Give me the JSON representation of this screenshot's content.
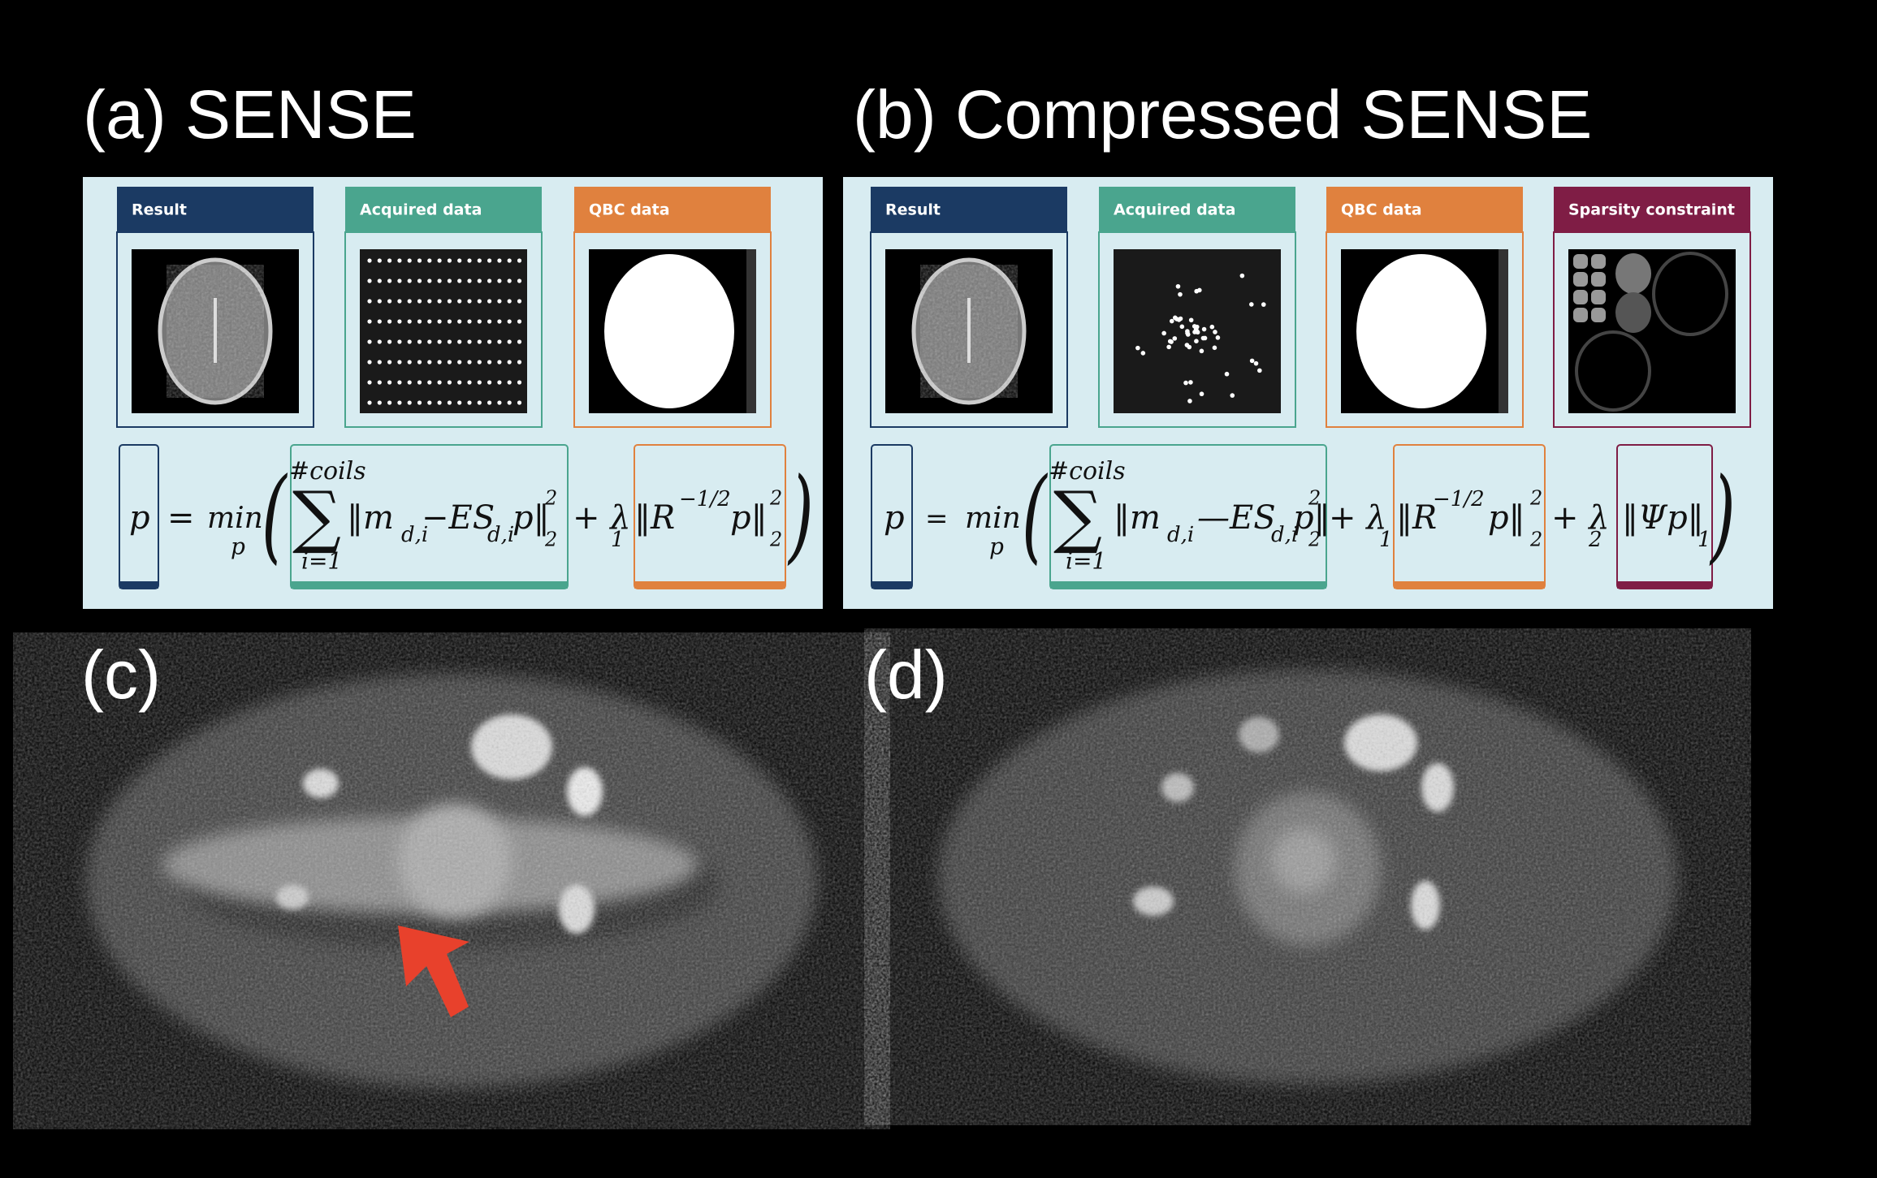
{
  "panel_a": {
    "label": "(a) SENSE",
    "headers": [
      "Result",
      "Acquired data",
      "QBC data"
    ],
    "formula": [
      "p",
      "=",
      "min",
      "p",
      "(",
      "#coils",
      "∑",
      "i=1",
      "‖m",
      "d,i",
      "−ES",
      "d,i",
      "p‖",
      "2",
      "2",
      "+ λ",
      "1",
      "‖R",
      "−1/2",
      "p‖",
      "2",
      "2",
      ")"
    ]
  },
  "panel_b": {
    "label": "(b) Compressed SENSE",
    "headers": [
      "Result",
      "Acquired data",
      "QBC data",
      "Sparsity constraint"
    ],
    "formula": [
      "p",
      "=",
      "min",
      "p",
      "(",
      "#coils",
      "∑",
      "i=1",
      "‖m",
      "d,i",
      "—ES",
      "d,i",
      "p‖",
      "2",
      "2",
      "+ λ",
      "1",
      "‖R",
      "−1/2",
      "p‖",
      "2",
      "2",
      "+ λ",
      "2",
      "‖Ψp‖",
      "1",
      ")"
    ]
  },
  "panel_c": {
    "label": "(c)"
  },
  "panel_d": {
    "label": "(d)"
  }
}
